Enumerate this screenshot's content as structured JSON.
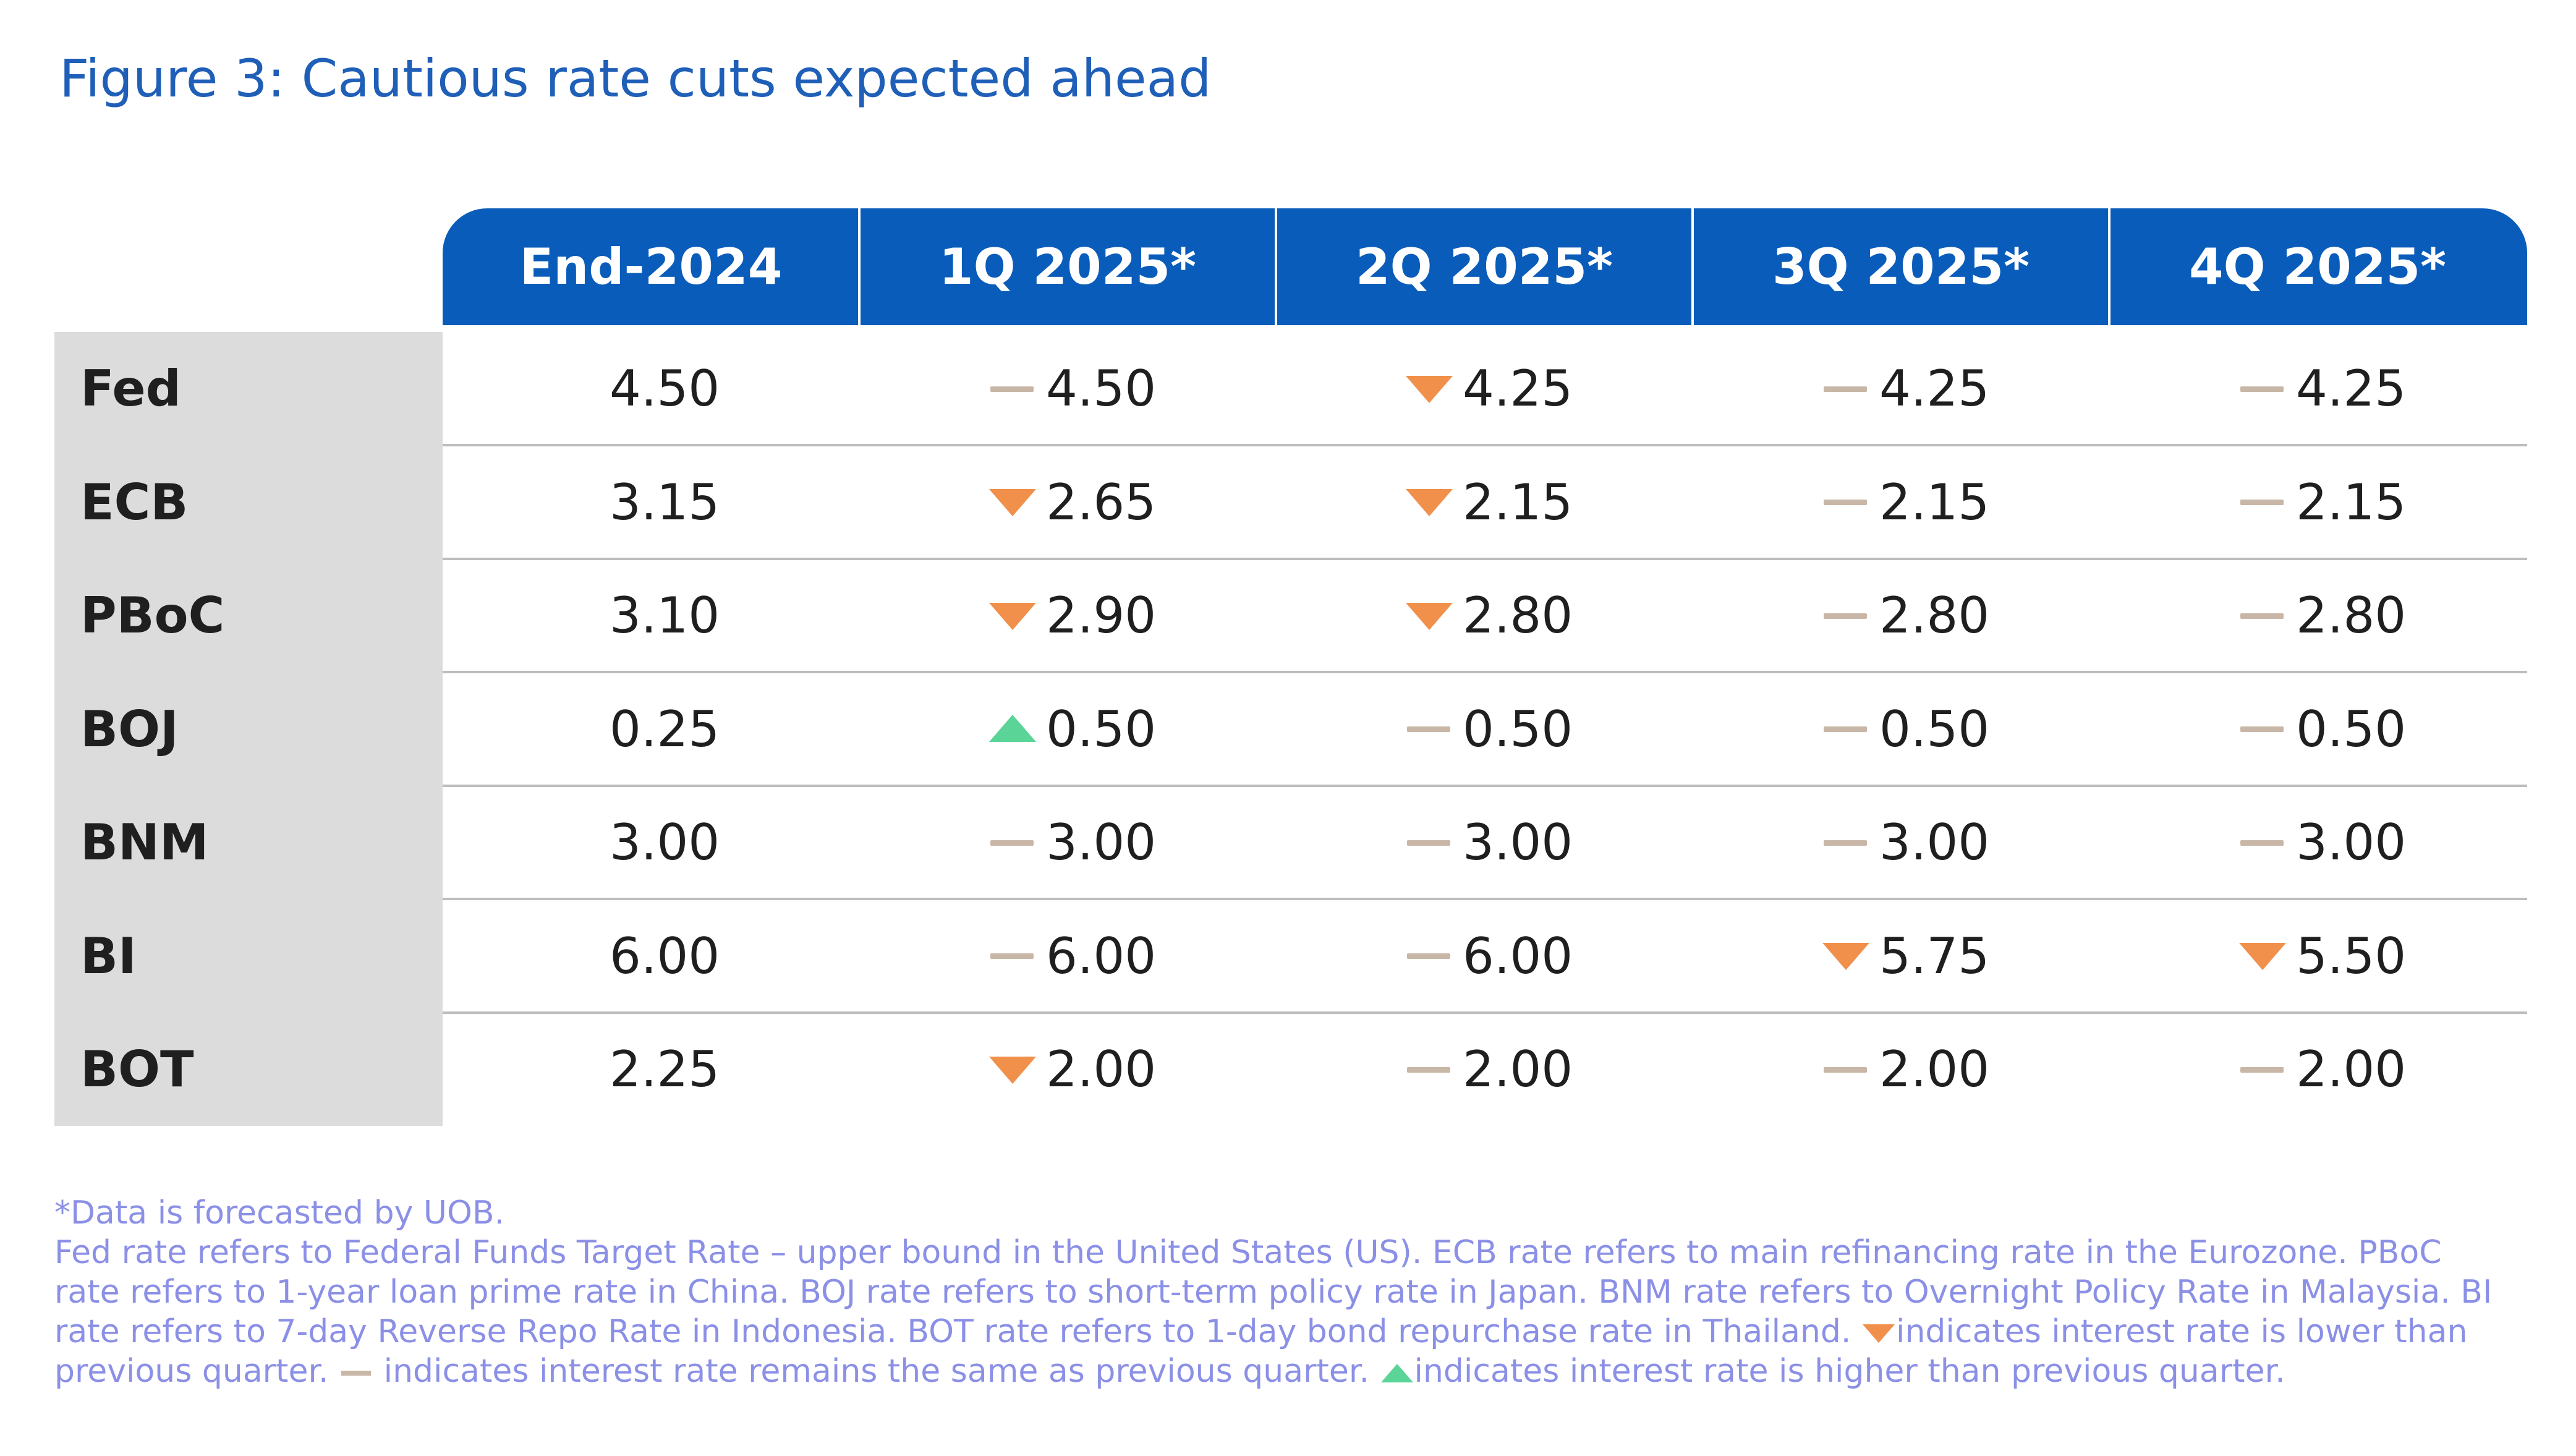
{
  "chart_data": {
    "type": "table",
    "title": "Figure 3: Cautious rate cuts expected ahead",
    "columns": [
      "End-2024",
      "1Q 2025*",
      "2Q 2025*",
      "3Q 2025*",
      "4Q 2025*"
    ],
    "rows": [
      {
        "label": "Fed",
        "values": [
          "4.50",
          "4.50",
          "4.25",
          "4.25",
          "4.25"
        ],
        "markers": [
          "",
          "same",
          "down",
          "same",
          "same"
        ]
      },
      {
        "label": "ECB",
        "values": [
          "3.15",
          "2.65",
          "2.15",
          "2.15",
          "2.15"
        ],
        "markers": [
          "",
          "down",
          "down",
          "same",
          "same"
        ]
      },
      {
        "label": "PBoC",
        "values": [
          "3.10",
          "2.90",
          "2.80",
          "2.80",
          "2.80"
        ],
        "markers": [
          "",
          "down",
          "down",
          "same",
          "same"
        ]
      },
      {
        "label": "BOJ",
        "values": [
          "0.25",
          "0.50",
          "0.50",
          "0.50",
          "0.50"
        ],
        "markers": [
          "",
          "up",
          "same",
          "same",
          "same"
        ]
      },
      {
        "label": "BNM",
        "values": [
          "3.00",
          "3.00",
          "3.00",
          "3.00",
          "3.00"
        ],
        "markers": [
          "",
          "same",
          "same",
          "same",
          "same"
        ]
      },
      {
        "label": "BI",
        "values": [
          "6.00",
          "6.00",
          "6.00",
          "5.75",
          "5.50"
        ],
        "markers": [
          "",
          "same",
          "same",
          "down",
          "down"
        ]
      },
      {
        "label": "BOT",
        "values": [
          "2.25",
          "2.00",
          "2.00",
          "2.00",
          "2.00"
        ],
        "markers": [
          "",
          "down",
          "same",
          "same",
          "same"
        ]
      }
    ],
    "colors": {
      "header_bg": "#0a5cba",
      "down": "#f0904a",
      "same": "#c8b6a6",
      "up": "#5bd498",
      "title": "#1f5fb8",
      "footnote": "#8b90e6"
    }
  },
  "footnotes": {
    "forecast_note": "*Data is forecasted by UOB.",
    "definitions": "Fed rate refers to Federal Funds Target Rate – upper bound in the United States (US). ECB rate refers to main refinancing rate in the Eurozone. PBoC rate refers to 1-year loan prime rate in China. BOJ rate refers to short-term policy rate in Japan. BNM rate refers to Overnight Policy Rate in Malaysia. BI rate refers to 7-day Reverse Repo Rate in Indonesia. BOT rate refers to 1-day bond repurchase rate in Thailand.",
    "legend_down": "indicates interest rate is lower than previous quarter.",
    "legend_same": "indicates interest rate remains the same as previous quarter.",
    "legend_up": "indicates interest rate is higher than previous quarter."
  }
}
